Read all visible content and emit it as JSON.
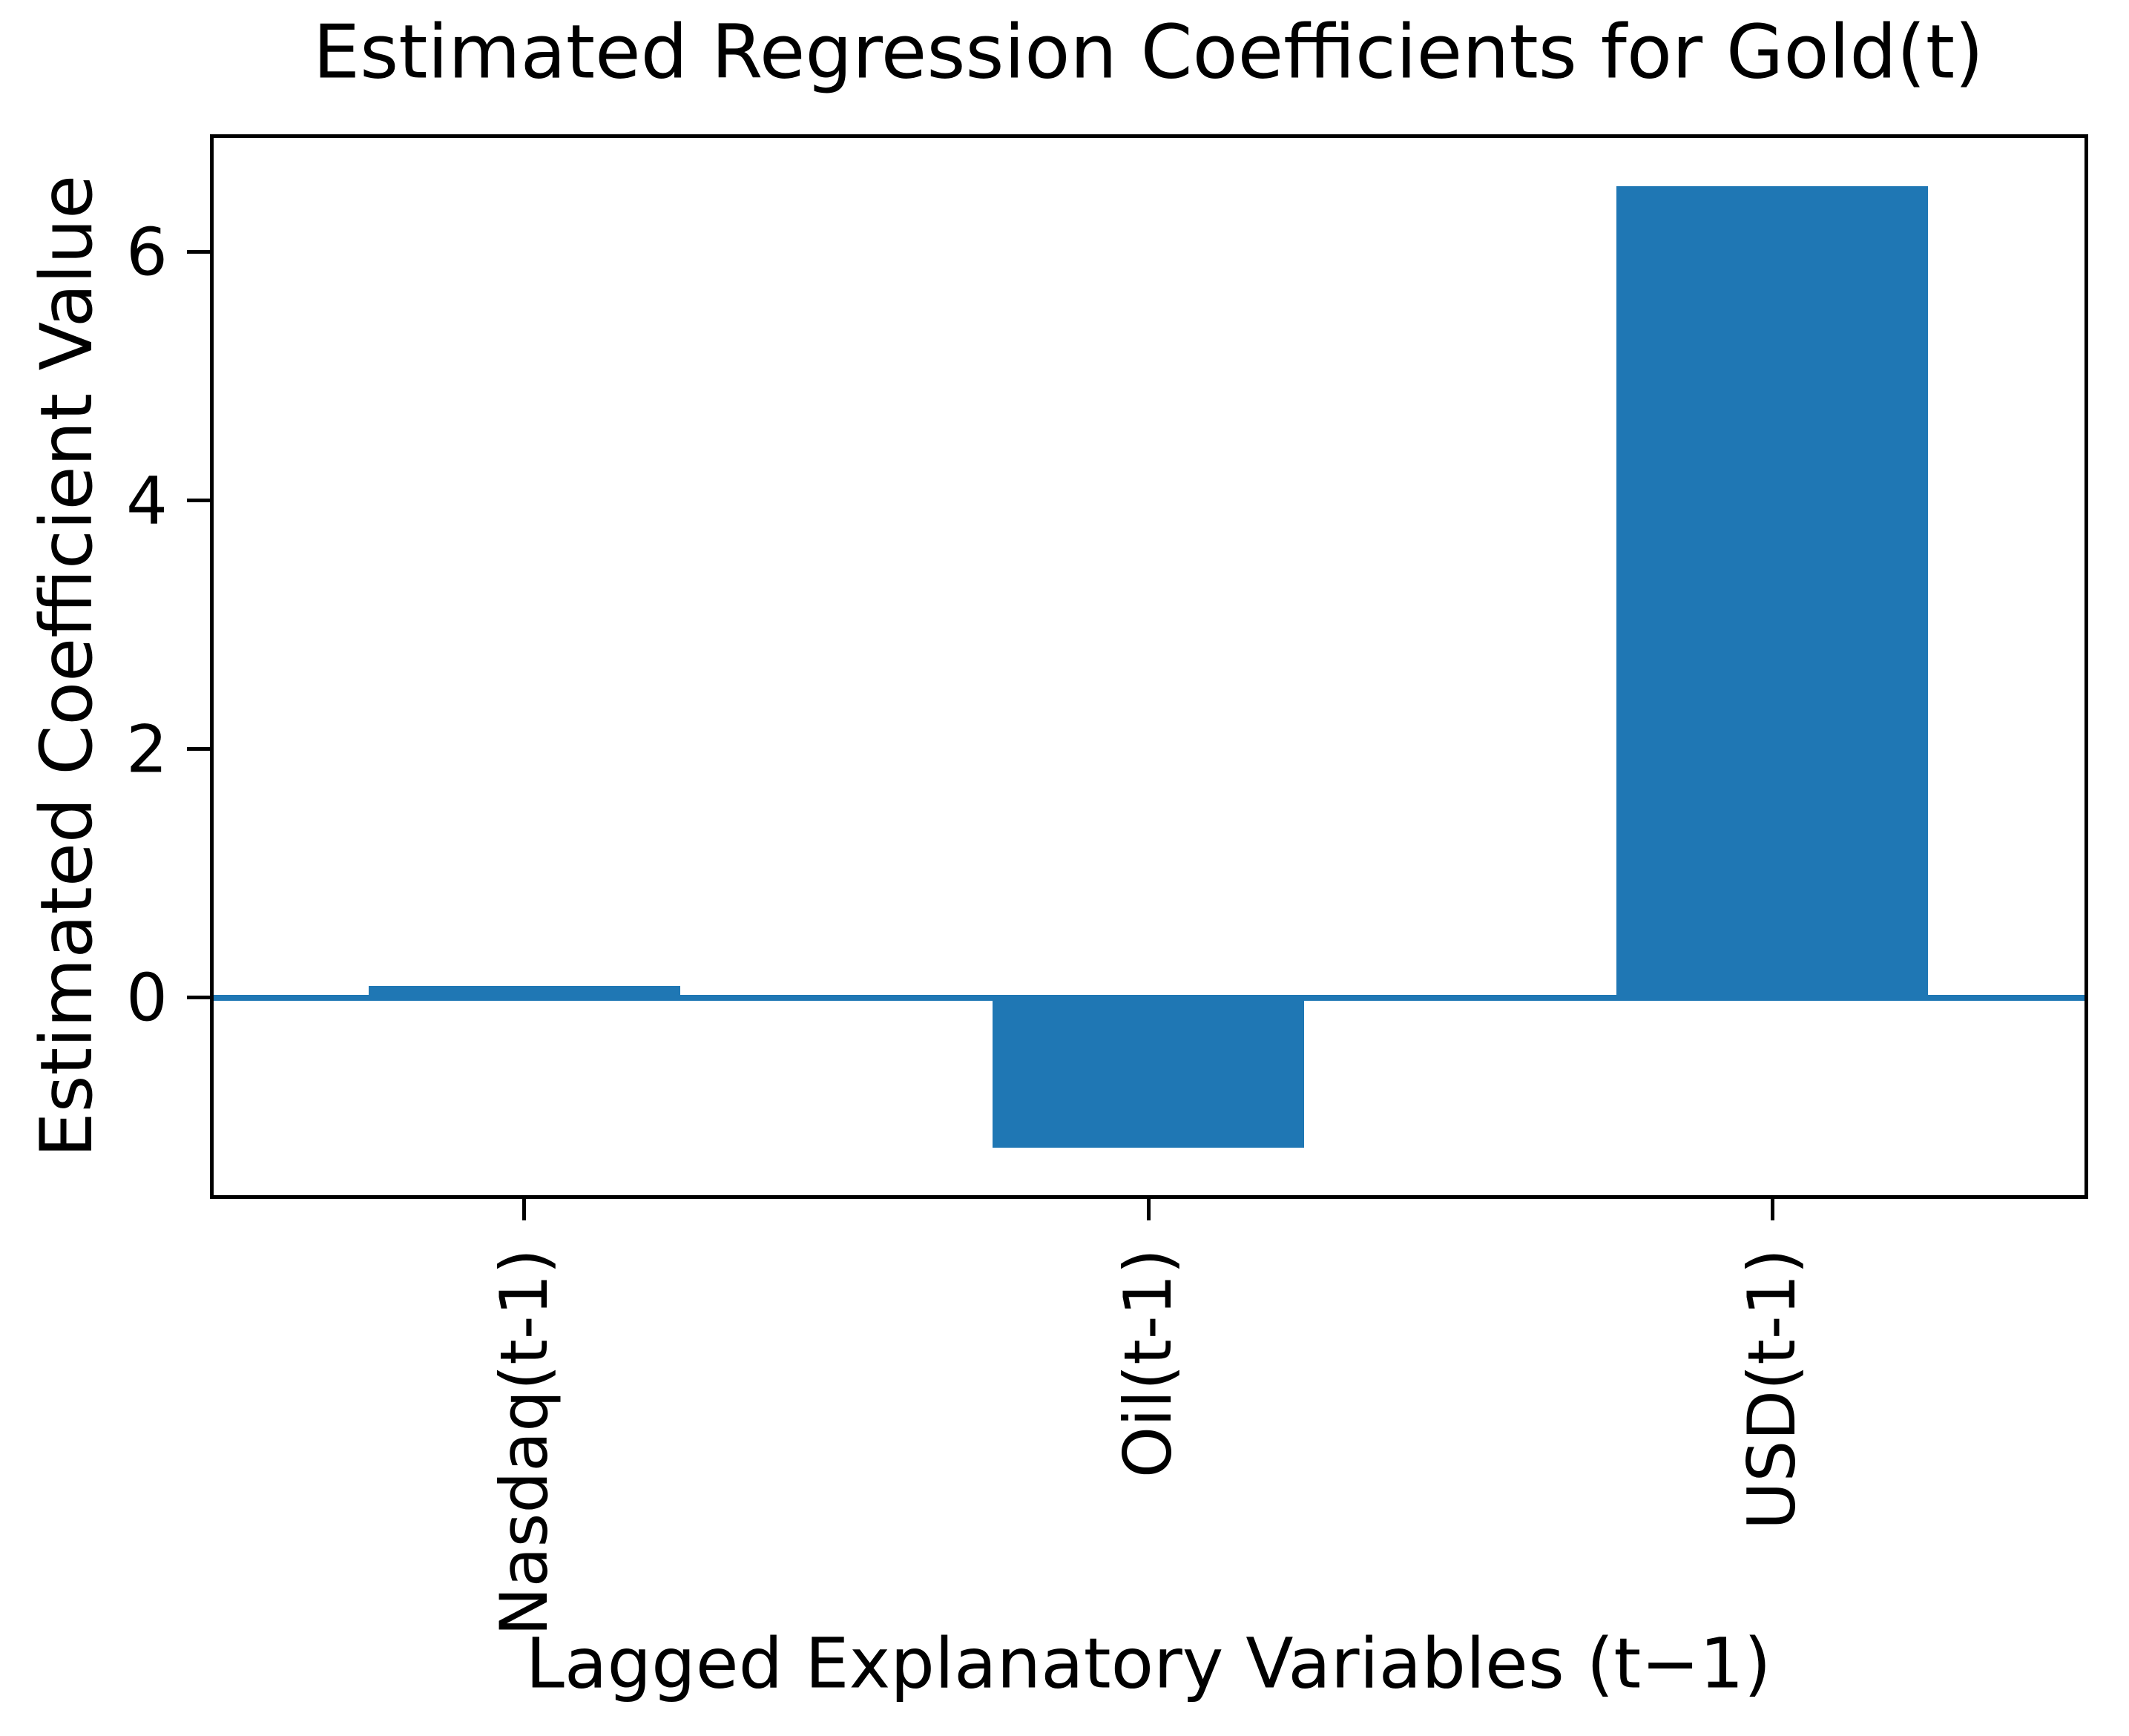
{
  "chart_data": {
    "type": "bar",
    "title": "Estimated Regression Coefficients for Gold(t)",
    "xlabel": "Lagged Explanatory Variables (t−1)",
    "ylabel": "Estimated Coefficient Value",
    "categories": [
      "Nasdaq(t-1)",
      "Oil(t-1)",
      "USD(t-1)"
    ],
    "values": [
      0.09,
      -1.21,
      6.53
    ],
    "yticks": [
      0,
      2,
      4,
      6
    ],
    "ylim": [
      -1.59,
      6.92
    ],
    "xtick_label_rotation_deg": 90,
    "grid": false,
    "legend": "none",
    "bar_color": "#1f77b4",
    "zero_line_color": "#1f77b4",
    "spine_color": "#000000",
    "background_color": "#ffffff"
  }
}
